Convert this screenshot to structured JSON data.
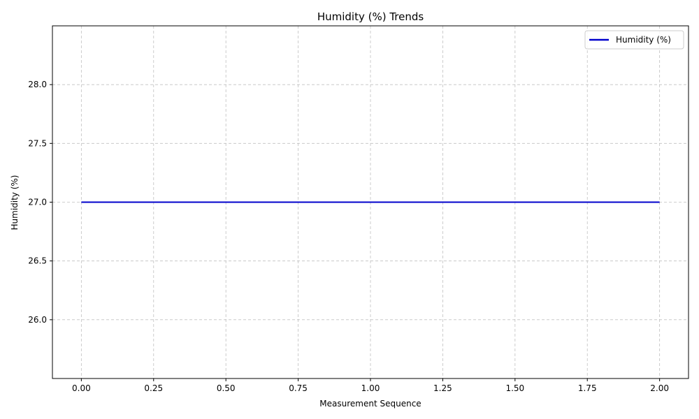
{
  "chart_data": {
    "type": "line",
    "title": "Humidity (%) Trends",
    "xlabel": "Measurement Sequence",
    "ylabel": "Humidity (%)",
    "xlim": [
      -0.1,
      2.1
    ],
    "ylim": [
      25.5,
      28.5
    ],
    "x_ticks": [
      0.0,
      0.25,
      0.5,
      0.75,
      1.0,
      1.25,
      1.5,
      1.75,
      2.0
    ],
    "x_tick_labels": [
      "0.00",
      "0.25",
      "0.50",
      "0.75",
      "1.00",
      "1.25",
      "1.50",
      "1.75",
      "2.00"
    ],
    "y_ticks": [
      26.0,
      26.5,
      27.0,
      27.5,
      28.0
    ],
    "y_tick_labels": [
      "26.0",
      "26.5",
      "27.0",
      "27.5",
      "28.0"
    ],
    "grid": true,
    "legend_position": "top-right",
    "series": [
      {
        "name": "Humidity (%)",
        "color": "#0000cc",
        "x": [
          0,
          1,
          2
        ],
        "y": [
          27,
          27,
          27
        ]
      }
    ]
  }
}
